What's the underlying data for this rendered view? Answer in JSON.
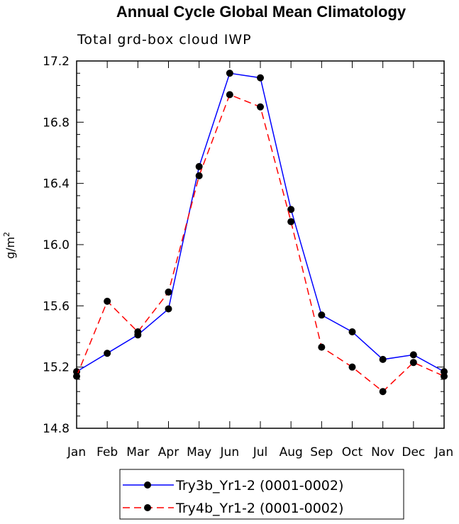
{
  "chart_data": {
    "type": "line",
    "title": "Annual Cycle Global Mean Climatology",
    "subtitle": "Total grd-box cloud IWP",
    "ylabel_base": "g/m",
    "ylabel_exp": "2",
    "xlabel": "",
    "categories": [
      "Jan",
      "Feb",
      "Mar",
      "Apr",
      "May",
      "Jun",
      "Jul",
      "Aug",
      "Sep",
      "Oct",
      "Nov",
      "Dec",
      "Jan"
    ],
    "ylim": [
      14.8,
      17.2
    ],
    "yticks": [
      14.8,
      15.2,
      15.6,
      16.0,
      16.4,
      16.8,
      17.2
    ],
    "ytick_labels": [
      "14.8",
      "15.2",
      "15.6",
      "16.0",
      "16.4",
      "16.8",
      "17.2"
    ],
    "series": [
      {
        "name": "Try3b_Yr1-2 (0001-0002)",
        "color": "#0000ff",
        "dash": "solid",
        "values": [
          15.17,
          15.29,
          15.41,
          15.58,
          16.51,
          17.12,
          17.09,
          16.23,
          15.54,
          15.43,
          15.25,
          15.28,
          15.17
        ]
      },
      {
        "name": "Try4b_Yr1-2 (0001-0002)",
        "color": "#ff0000",
        "dash": "dashed",
        "values": [
          15.14,
          15.63,
          15.43,
          15.69,
          16.45,
          16.98,
          16.9,
          16.15,
          15.33,
          15.2,
          15.04,
          15.23,
          15.14
        ]
      }
    ],
    "legend": {
      "position": "bottom-center",
      "frame": true
    }
  }
}
